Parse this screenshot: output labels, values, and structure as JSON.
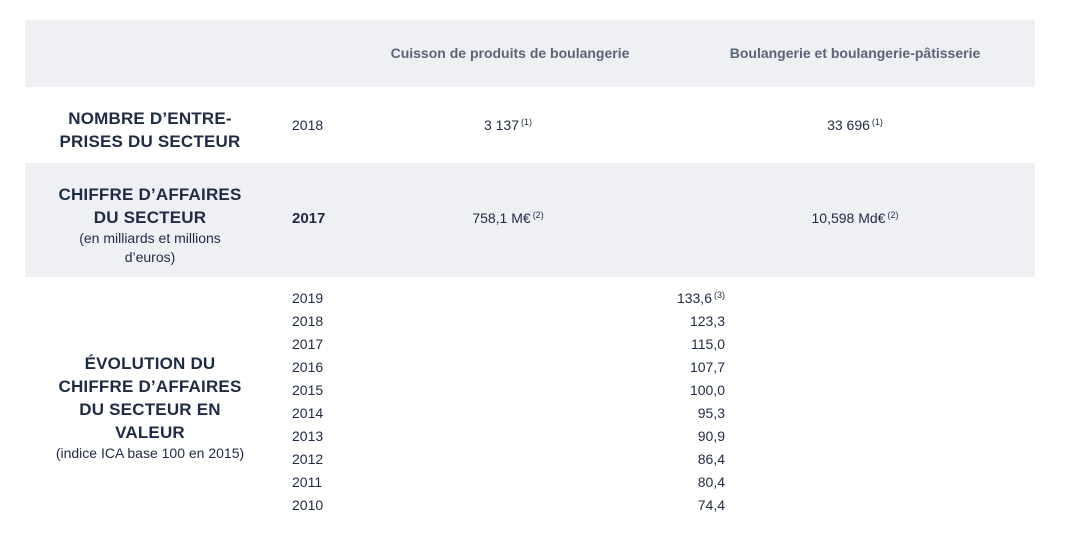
{
  "header": {
    "col1": "Cuisson de produits de boulangerie",
    "col2": "Boulangerie et boulangerie-pâtisserie"
  },
  "rows": {
    "entreprises": {
      "title_line1": "NOMBRE D’ENTRE-",
      "title_line2": "PRISES DU SECTEUR",
      "year": "2018",
      "value1": "3 137",
      "value1_note": "(1)",
      "value2": "33 696",
      "value2_note": "(1)"
    },
    "chiffre": {
      "title_line1": "CHIFFRE D’AFFAIRES",
      "title_line2": "DU SECTEUR",
      "note_line1": "(en milliards et millions",
      "note_line2": "d’euros)",
      "year": "2017",
      "value1": "758,1 M€",
      "value1_note": "(2)",
      "value2": "10,598 Md€",
      "value2_note": "(2)"
    },
    "evolution": {
      "title_line1": "ÉVOLUTION DU",
      "title_line2": "CHIFFRE D’AFFAIRES",
      "title_line3": "DU SECTEUR EN",
      "title_line4": "VALEUR",
      "note": "(indice ICA base 100 en 2015)",
      "items": [
        {
          "year": "2019",
          "value": "133,6",
          "note": "(3)"
        },
        {
          "year": "2018",
          "value": "123,3",
          "note": ""
        },
        {
          "year": "2017",
          "value": "115,0",
          "note": ""
        },
        {
          "year": "2016",
          "value": "107,7",
          "note": ""
        },
        {
          "year": "2015",
          "value": "100,0",
          "note": ""
        },
        {
          "year": "2014",
          "value": "95,3",
          "note": ""
        },
        {
          "year": "2013",
          "value": "90,9",
          "note": ""
        },
        {
          "year": "2012",
          "value": "86,4",
          "note": ""
        },
        {
          "year": "2011",
          "value": "80,4",
          "note": ""
        },
        {
          "year": "2010",
          "value": "74,4",
          "note": ""
        }
      ]
    }
  }
}
